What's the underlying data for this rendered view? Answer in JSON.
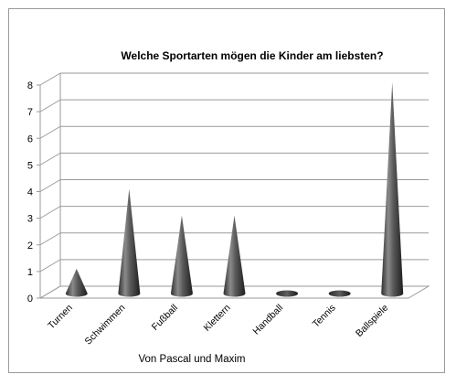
{
  "chart_data": {
    "type": "bar",
    "style": "3d-cone",
    "title": "Welche Sportarten mögen die Kinder am liebsten?",
    "xlabel": "Von Pascal und Maxim",
    "ylabel": "",
    "categories": [
      "Turnen",
      "Schwimmen",
      "Fußball",
      "Klettern",
      "Handball",
      "Tennis",
      "Ballspiele"
    ],
    "values": [
      1,
      4,
      3,
      3,
      0,
      0,
      8
    ],
    "ylim": [
      0,
      8
    ],
    "yticks": [
      "0",
      "1",
      "2",
      "3",
      "4",
      "5",
      "6",
      "7",
      "8"
    ],
    "grid": true,
    "legend": "none",
    "colors": {
      "cone": "#5a5a5a",
      "grid": "#9a9a9a",
      "frame": "#9a9a9a"
    }
  }
}
